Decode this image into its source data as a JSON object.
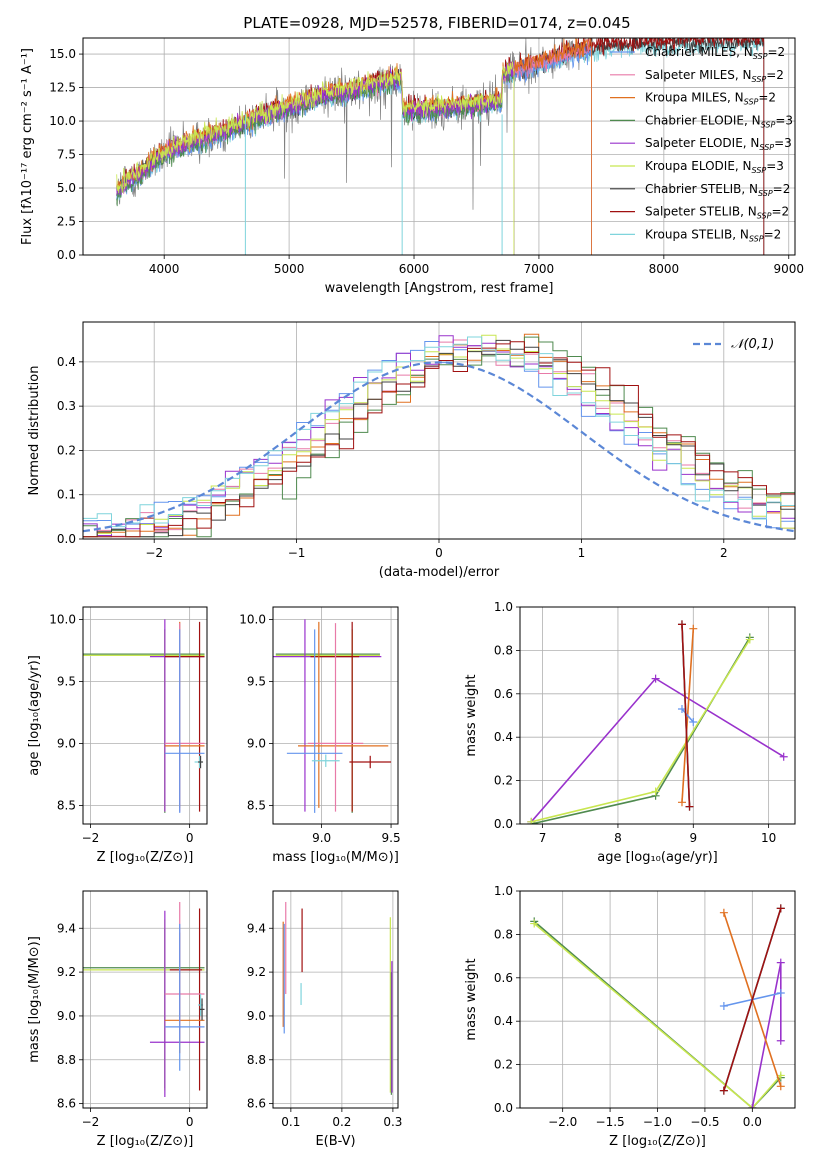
{
  "figure_title": "PLATE=0928, MJD=52578, FIBERID=0174, z=0.045",
  "colors": {
    "chabrier_miles": "#6495ed",
    "salpeter_miles": "#e87aa8",
    "kroupa_miles": "#e07020",
    "chabrier_elodie": "#4f8a4f",
    "salpeter_elodie": "#9932cc",
    "kroupa_elodie": "#c8e650",
    "chabrier_stelib": "#404040",
    "salpeter_stelib": "#a01010",
    "kroupa_stelib": "#7fd4dc",
    "data": "#808080",
    "gaussian": "#5b87d6"
  },
  "chart_data": [
    {
      "type": "line",
      "title": "PLATE=0928, MJD=52578, FIBERID=0174, z=0.045",
      "xlabel": "wavelength [Angstrom, rest frame]",
      "ylabel": "Flux [fλ10⁻¹⁷ erg cm⁻² s⁻¹ A⁻¹]",
      "xlim": [
        3350,
        9050
      ],
      "ylim": [
        0,
        16.2
      ],
      "xticks": [
        4000,
        5000,
        6000,
        7000,
        8000,
        9000
      ],
      "xtick_labels": [
        "4000",
        "5000",
        "6000",
        "7000",
        "8000",
        "9000"
      ],
      "yticks": [
        0,
        2.5,
        5,
        7.5,
        10,
        12.5,
        15
      ],
      "ytick_labels": [
        "0.0",
        "2.5",
        "5.0",
        "7.5",
        "10.0",
        "12.5",
        "15.0"
      ],
      "legend_position": "right",
      "legend": [
        {
          "label": "Chabrier MILES, N",
          "sub": "SSP",
          "suffix": "=2"
        },
        {
          "label": "Salpeter MILES, N",
          "sub": "SSP",
          "suffix": "=2"
        },
        {
          "label": "Kroupa MILES, N",
          "sub": "SSP",
          "suffix": "=2"
        },
        {
          "label": "Chabrier ELODIE, N",
          "sub": "SSP",
          "suffix": "=3"
        },
        {
          "label": "Salpeter ELODIE, N",
          "sub": "SSP",
          "suffix": "=3"
        },
        {
          "label": "Kroupa ELODIE, N",
          "sub": "SSP",
          "suffix": "=3"
        },
        {
          "label": "Chabrier STELIB, N",
          "sub": "SSP",
          "suffix": "=2"
        },
        {
          "label": "Salpeter STELIB, N",
          "sub": "SSP",
          "suffix": "=2"
        },
        {
          "label": "Kroupa STELIB, N",
          "sub": "SSP",
          "suffix": "=2"
        }
      ],
      "continuum_nodes": {
        "wavelength": [
          3620,
          3700,
          3800,
          3950,
          4100,
          4300,
          4500,
          4700,
          4900,
          5100,
          5300,
          5500,
          5700,
          5900,
          5910,
          6200,
          6500,
          6700,
          6710,
          6900,
          7100,
          7300,
          7420,
          7600,
          8000,
          8400,
          8800
        ],
        "flux": [
          4.8,
          5.5,
          6.0,
          7.3,
          8.0,
          8.6,
          9.3,
          10.0,
          10.8,
          11.3,
          12.0,
          12.3,
          12.8,
          13.1,
          10.8,
          11.0,
          11.2,
          11.5,
          13.5,
          14.0,
          14.6,
          15.2,
          15.4,
          15.6,
          15.8,
          15.9,
          16.0
        ]
      },
      "series_end_wavelength": {
        "miles": 7420,
        "elodie": 6800,
        "stelib": 8800
      }
    },
    {
      "type": "line",
      "xlabel": "(data-model)/error",
      "ylabel": "Normed distribution",
      "xlim": [
        -2.5,
        2.5
      ],
      "ylim": [
        0,
        0.49
      ],
      "xticks": [
        -2,
        -1,
        0,
        1,
        2
      ],
      "xtick_labels": [
        "−2",
        "−1",
        "0",
        "1",
        "2"
      ],
      "yticks": [
        0,
        0.1,
        0.2,
        0.3,
        0.4
      ],
      "ytick_labels": [
        "0.0",
        "0.1",
        "0.2",
        "0.3",
        "0.4"
      ],
      "legend_position": "top-right",
      "gaussian_label": "𝒩(0,1)",
      "histogram_bin_width": 0.1,
      "histogram_peak_center": 0.35,
      "histogram_peak_height": 0.43,
      "histogram_sigma": 1.05,
      "histogram_noise": 0.025
    },
    {
      "type": "scatter",
      "xlabel": "Z [log₁₀(Z/Z⊙)]",
      "ylabel": "age  [log₁₀(age/yr)]",
      "xlim": [
        -2.15,
        0.35
      ],
      "ylim": [
        8.35,
        10.1
      ],
      "xticks": [
        -2,
        0
      ],
      "xtick_labels": [
        "−2",
        "0"
      ],
      "yticks": [
        8.5,
        9.0,
        9.5,
        10.0
      ],
      "ytick_labels": [
        "8.5",
        "9.0",
        "9.5",
        "10.0"
      ],
      "errorbars": [
        {
          "s": "chabrier_elodie",
          "x": -0.5,
          "xerr": [
            1.85,
            0.8
          ],
          "y": 9.72,
          "yerr": [
            1.28,
            0.2
          ]
        },
        {
          "s": "kroupa_elodie",
          "x": -0.5,
          "xerr": [
            1.85,
            0.8
          ],
          "y": 9.71,
          "yerr": [
            1.26,
            0.2
          ]
        },
        {
          "s": "salpeter_elodie",
          "x": -0.5,
          "xerr": [
            0.3,
            0.8
          ],
          "y": 9.7,
          "yerr": [
            1.25,
            0.3
          ]
        },
        {
          "s": "salpeter_stelib",
          "x": 0.2,
          "xerr": [
            0.7,
            0.1
          ],
          "y": 9.7,
          "yerr": [
            1.25,
            0.28
          ]
        },
        {
          "s": "kroupa_miles",
          "x": -0.2,
          "xerr": [
            0.3,
            0.5
          ],
          "y": 8.98,
          "yerr": [
            0.5,
            1.0
          ]
        },
        {
          "s": "salpeter_miles",
          "x": -0.2,
          "xerr": [
            0.3,
            0.5
          ],
          "y": 9.0,
          "yerr": [
            0.55,
            0.97
          ]
        },
        {
          "s": "chabrier_miles",
          "x": -0.2,
          "xerr": [
            0.3,
            0.5
          ],
          "y": 8.92,
          "yerr": [
            0.48,
            1.0
          ]
        },
        {
          "s": "kroupa_stelib",
          "x": 0.2,
          "xerr": [
            0.1,
            0.05
          ],
          "y": 8.85,
          "yerr": [
            0.05,
            0.05
          ]
        },
        {
          "s": "chabrier_stelib",
          "x": 0.22,
          "xerr": [
            0.05,
            0.05
          ],
          "y": 8.85,
          "yerr": [
            0.05,
            0.05
          ]
        }
      ]
    },
    {
      "type": "scatter",
      "xlabel": "mass [log₁₀(M/M⊙)]",
      "ylabel": "",
      "xlim": [
        8.65,
        9.55
      ],
      "ylim": [
        8.35,
        10.1
      ],
      "xticks": [
        9.0,
        9.5
      ],
      "xtick_labels": [
        "9.0",
        "9.5"
      ],
      "yticks": [
        8.5,
        9.0,
        9.5,
        10.0
      ],
      "ytick_labels": [
        "8.5",
        "9.0",
        "9.5",
        "10.0"
      ],
      "errorbars": [
        {
          "s": "chabrier_elodie",
          "x": 9.22,
          "xerr": [
            0.55,
            0.2
          ],
          "y": 9.72,
          "yerr": [
            1.28,
            0.2
          ]
        },
        {
          "s": "kroupa_elodie",
          "x": 9.22,
          "xerr": [
            0.55,
            0.2
          ],
          "y": 9.71,
          "yerr": [
            1.26,
            0.2
          ]
        },
        {
          "s": "salpeter_elodie",
          "x": 8.88,
          "xerr": [
            0.25,
            0.55
          ],
          "y": 9.7,
          "yerr": [
            1.25,
            0.3
          ]
        },
        {
          "s": "salpeter_stelib",
          "x": 9.22,
          "xerr": [
            0.3,
            0.05
          ],
          "y": 9.7,
          "yerr": [
            1.25,
            0.28
          ]
        },
        {
          "s": "kroupa_miles",
          "x": 8.98,
          "xerr": [
            0.15,
            0.5
          ],
          "y": 8.98,
          "yerr": [
            0.5,
            1.0
          ]
        },
        {
          "s": "salpeter_miles",
          "x": 9.1,
          "xerr": [
            0.2,
            0.2
          ],
          "y": 9.0,
          "yerr": [
            0.55,
            0.97
          ]
        },
        {
          "s": "chabrier_miles",
          "x": 8.95,
          "xerr": [
            0.2,
            0.2
          ],
          "y": 8.92,
          "yerr": [
            0.48,
            1.0
          ]
        },
        {
          "s": "kroupa_stelib",
          "x": 9.03,
          "xerr": [
            0.1,
            0.1
          ],
          "y": 8.86,
          "yerr": [
            0.05,
            0.05
          ]
        },
        {
          "s": "salpeter_stelib",
          "x": 9.35,
          "xerr": [
            0.15,
            0.15
          ],
          "y": 8.85,
          "yerr": [
            0.05,
            0.05
          ]
        }
      ]
    },
    {
      "type": "line",
      "xlabel": "age  [log₁₀(age/yr)]",
      "ylabel": "mass weight",
      "xlim": [
        6.7,
        10.35
      ],
      "ylim": [
        0,
        1.0
      ],
      "xticks": [
        7,
        8,
        9,
        10
      ],
      "xtick_labels": [
        "7",
        "8",
        "9",
        "10"
      ],
      "yticks": [
        0,
        0.2,
        0.4,
        0.6,
        0.8,
        1.0
      ],
      "ytick_labels": [
        "0.0",
        "0.2",
        "0.4",
        "0.6",
        "0.8",
        "1.0"
      ],
      "series": [
        {
          "s": "salpeter_elodie",
          "x": [
            6.85,
            8.5,
            10.2
          ],
          "y": [
            0.01,
            0.67,
            0.31
          ]
        },
        {
          "s": "chabrier_elodie",
          "x": [
            6.85,
            8.5,
            9.75
          ],
          "y": [
            0.0,
            0.13,
            0.86
          ]
        },
        {
          "s": "kroupa_elodie",
          "x": [
            6.85,
            8.5,
            9.75
          ],
          "y": [
            0.01,
            0.15,
            0.85
          ]
        },
        {
          "s": "kroupa_miles",
          "x": [
            8.85,
            9.0
          ],
          "y": [
            0.1,
            0.9
          ]
        },
        {
          "s": "chabrier_miles",
          "x": [
            8.85,
            9.0
          ],
          "y": [
            0.53,
            0.47
          ]
        },
        {
          "s": "chabrier_stelib",
          "x": [
            8.85,
            8.95
          ],
          "y": [
            0.92,
            0.08
          ]
        },
        {
          "s": "kroupa_stelib",
          "x": [
            8.85,
            8.95
          ],
          "y": [
            0.92,
            0.08
          ]
        },
        {
          "s": "salpeter_stelib",
          "x": [
            8.85,
            8.95
          ],
          "y": [
            0.92,
            0.08
          ]
        }
      ]
    },
    {
      "type": "scatter",
      "xlabel": "Z [log₁₀(Z/Z⊙)]",
      "ylabel": "mass [log₁₀(M/M⊙)]",
      "xlim": [
        -2.15,
        0.35
      ],
      "ylim": [
        8.58,
        9.57
      ],
      "xticks": [
        -2,
        0
      ],
      "xtick_labels": [
        "−2",
        "0"
      ],
      "yticks": [
        8.6,
        8.8,
        9.0,
        9.2,
        9.4
      ],
      "ytick_labels": [
        "8.6",
        "8.8",
        "9.0",
        "9.2",
        "9.4"
      ],
      "errorbars": [
        {
          "s": "chabrier_elodie",
          "x": -0.5,
          "xerr": [
            1.85,
            0.8
          ],
          "y": 9.22,
          "yerr": [
            0.55,
            0.18
          ]
        },
        {
          "s": "kroupa_elodie",
          "x": -0.5,
          "xerr": [
            1.85,
            0.8
          ],
          "y": 9.21,
          "yerr": [
            0.55,
            0.23
          ]
        },
        {
          "s": "salpeter_elodie",
          "x": -0.5,
          "xerr": [
            0.3,
            0.8
          ],
          "y": 8.88,
          "yerr": [
            0.25,
            0.6
          ]
        },
        {
          "s": "salpeter_stelib",
          "x": 0.2,
          "xerr": [
            0.6,
            0.05
          ],
          "y": 9.21,
          "yerr": [
            0.55,
            0.28
          ]
        },
        {
          "s": "kroupa_miles",
          "x": -0.2,
          "xerr": [
            0.3,
            0.5
          ],
          "y": 8.98,
          "yerr": [
            0.15,
            0.4
          ]
        },
        {
          "s": "salpeter_miles",
          "x": -0.2,
          "xerr": [
            0.3,
            0.5
          ],
          "y": 9.1,
          "yerr": [
            0.2,
            0.42
          ]
        },
        {
          "s": "chabrier_miles",
          "x": -0.2,
          "xerr": [
            0.3,
            0.5
          ],
          "y": 8.95,
          "yerr": [
            0.2,
            0.47
          ]
        },
        {
          "s": "kroupa_stelib",
          "x": 0.22,
          "xerr": [
            0.05,
            0.05
          ],
          "y": 9.05,
          "yerr": [
            0.05,
            0.05
          ]
        },
        {
          "s": "chabrier_stelib",
          "x": 0.25,
          "xerr": [
            0.05,
            0.05
          ],
          "y": 9.03,
          "yerr": [
            0.05,
            0.05
          ]
        }
      ]
    },
    {
      "type": "scatter",
      "xlabel": "E(B-V)",
      "ylabel": "",
      "xlim": [
        0.065,
        0.31
      ],
      "ylim": [
        8.58,
        9.57
      ],
      "xticks": [
        0.1,
        0.2,
        0.3
      ],
      "xtick_labels": [
        "0.1",
        "0.2",
        "0.3"
      ],
      "yticks": [
        8.6,
        8.8,
        9.0,
        9.2,
        9.4
      ],
      "ytick_labels": [
        "8.6",
        "8.8",
        "9.0",
        "9.2",
        "9.4"
      ],
      "errorbars": [
        {
          "s": "kroupa_miles",
          "x": 0.085,
          "xerr": [
            0,
            0
          ],
          "y": 9.05,
          "yerr": [
            0.1,
            0.38
          ]
        },
        {
          "s": "chabrier_miles",
          "x": 0.087,
          "xerr": [
            0,
            0
          ],
          "y": 9.1,
          "yerr": [
            0.18,
            0.32
          ]
        },
        {
          "s": "salpeter_miles",
          "x": 0.09,
          "xerr": [
            0,
            0
          ],
          "y": 9.3,
          "yerr": [
            0.2,
            0.22
          ]
        },
        {
          "s": "salpeter_stelib",
          "x": 0.122,
          "xerr": [
            0,
            0
          ],
          "y": 9.35,
          "yerr": [
            0.15,
            0.14
          ]
        },
        {
          "s": "kroupa_stelib",
          "x": 0.12,
          "xerr": [
            0,
            0
          ],
          "y": 9.1,
          "yerr": [
            0.05,
            0.05
          ]
        },
        {
          "s": "kroupa_elodie",
          "x": 0.295,
          "xerr": [
            0,
            0
          ],
          "y": 9.15,
          "yerr": [
            0.5,
            0.3
          ]
        },
        {
          "s": "chabrier_elodie",
          "x": 0.297,
          "xerr": [
            0,
            0
          ],
          "y": 9.0,
          "yerr": [
            0.36,
            0.2
          ]
        },
        {
          "s": "salpeter_elodie",
          "x": 0.298,
          "xerr": [
            0,
            0
          ],
          "y": 8.95,
          "yerr": [
            0.3,
            0.3
          ]
        }
      ]
    },
    {
      "type": "line",
      "xlabel": "Z [log₁₀(Z/Z⊙)]",
      "ylabel": "mass weight",
      "xlim": [
        -2.45,
        0.45
      ],
      "ylim": [
        0,
        1.0
      ],
      "xticks": [
        -2.0,
        -1.5,
        -1.0,
        -0.5,
        0.0
      ],
      "xtick_labels": [
        "−2.0",
        "−1.5",
        "−1.0",
        "−0.5",
        "0.0"
      ],
      "yticks": [
        0,
        0.2,
        0.4,
        0.6,
        0.8,
        1.0
      ],
      "ytick_labels": [
        "0.0",
        "0.2",
        "0.4",
        "0.6",
        "0.8",
        "1.0"
      ],
      "series": [
        {
          "s": "chabrier_elodie",
          "x": [
            -2.3,
            0.0,
            0.3
          ],
          "y": [
            0.86,
            0.0,
            0.14
          ]
        },
        {
          "s": "kroupa_elodie",
          "x": [
            -2.3,
            0.0,
            0.3
          ],
          "y": [
            0.85,
            0.0,
            0.15
          ]
        },
        {
          "s": "salpeter_elodie",
          "x": [
            0.0,
            0.3,
            0.3
          ],
          "y": [
            0.0,
            0.67,
            0.31
          ]
        },
        {
          "s": "kroupa_miles",
          "x": [
            -0.3,
            0.3
          ],
          "y": [
            0.9,
            0.1
          ]
        },
        {
          "s": "chabrier_miles",
          "x": [
            -0.3,
            0.3
          ],
          "y": [
            0.47,
            0.53
          ]
        },
        {
          "s": "chabrier_stelib",
          "x": [
            -0.3,
            0.3
          ],
          "y": [
            0.08,
            0.92
          ]
        },
        {
          "s": "kroupa_stelib",
          "x": [
            -0.3,
            0.3
          ],
          "y": [
            0.08,
            0.92
          ]
        },
        {
          "s": "salpeter_stelib",
          "x": [
            -0.3,
            0.3
          ],
          "y": [
            0.08,
            0.92
          ]
        }
      ]
    }
  ]
}
